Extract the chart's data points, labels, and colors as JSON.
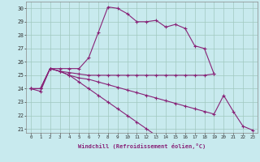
{
  "xlabel": "Windchill (Refroidissement éolien,°C)",
  "bg_color": "#c8eaee",
  "grid_color": "#a0c8c0",
  "line_color": "#882277",
  "xlim": [
    -0.5,
    23.5
  ],
  "ylim": [
    20.7,
    30.5
  ],
  "yticks": [
    21,
    22,
    23,
    24,
    25,
    26,
    27,
    28,
    29,
    30
  ],
  "xticks": [
    0,
    1,
    2,
    3,
    4,
    5,
    6,
    7,
    8,
    9,
    10,
    11,
    12,
    13,
    14,
    15,
    16,
    17,
    18,
    19,
    20,
    21,
    22,
    23
  ],
  "series": [
    [
      24.0,
      23.8,
      25.5,
      25.5,
      25.5,
      25.5,
      26.3,
      28.2,
      30.1,
      30.0,
      29.6,
      29.0,
      29.0,
      29.1,
      28.6,
      28.8,
      28.5,
      27.2,
      27.0,
      25.1,
      null,
      null,
      null,
      null
    ],
    [
      24.0,
      24.0,
      25.5,
      25.3,
      25.2,
      25.1,
      25.0,
      25.0,
      25.0,
      25.0,
      25.0,
      25.0,
      25.0,
      25.0,
      25.0,
      25.0,
      25.0,
      25.0,
      25.0,
      25.1,
      null,
      null,
      null,
      null
    ],
    [
      24.0,
      24.0,
      25.5,
      25.3,
      25.0,
      24.8,
      24.7,
      24.5,
      24.3,
      24.1,
      23.9,
      23.7,
      23.5,
      23.3,
      23.1,
      22.9,
      22.7,
      22.5,
      22.3,
      22.1,
      23.5,
      22.3,
      21.2,
      20.9
    ],
    [
      24.0,
      24.0,
      25.5,
      25.3,
      25.0,
      24.5,
      24.0,
      23.5,
      23.0,
      22.5,
      22.0,
      21.5,
      21.0,
      20.5,
      20.0,
      null,
      null,
      null,
      null,
      null,
      null,
      null,
      null,
      null
    ]
  ]
}
